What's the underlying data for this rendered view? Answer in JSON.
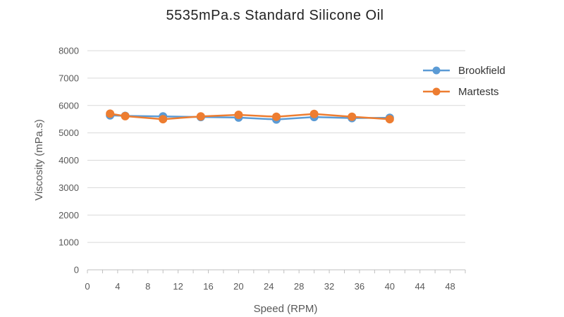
{
  "chart_data": {
    "type": "line",
    "title": "5535mPa.s Standard Silicone Oil",
    "xlabel": "Speed (RPM)",
    "ylabel": "Viscosity (mPa.s)",
    "xlim": [
      0,
      50
    ],
    "ylim": [
      0,
      8000
    ],
    "xticks": [
      0,
      4,
      8,
      12,
      16,
      20,
      24,
      28,
      32,
      36,
      40,
      44,
      48
    ],
    "xtick_labels": [
      "0",
      "4",
      "8",
      "12",
      "16",
      "20",
      "24",
      "28",
      "32",
      "36",
      "40",
      "44",
      "48"
    ],
    "yticks": [
      0,
      1000,
      2000,
      3000,
      4000,
      5000,
      6000,
      7000,
      8000
    ],
    "ytick_labels": [
      "0",
      "1000",
      "2000",
      "3000",
      "4000",
      "5000",
      "6000",
      "7000",
      "8000"
    ],
    "grid": "horizontal",
    "legend_position": "top-right",
    "series": [
      {
        "name": "Brookfield",
        "color": "#5b9bd5",
        "x": [
          3,
          5,
          10,
          15,
          20,
          25,
          30,
          35,
          40
        ],
        "y": [
          5640,
          5620,
          5600,
          5580,
          5560,
          5490,
          5580,
          5540,
          5550
        ]
      },
      {
        "name": "Martests",
        "color": "#ed7d31",
        "x": [
          3,
          5,
          10,
          15,
          20,
          25,
          30,
          35,
          40
        ],
        "y": [
          5700,
          5610,
          5500,
          5600,
          5660,
          5590,
          5690,
          5590,
          5500
        ]
      }
    ]
  }
}
